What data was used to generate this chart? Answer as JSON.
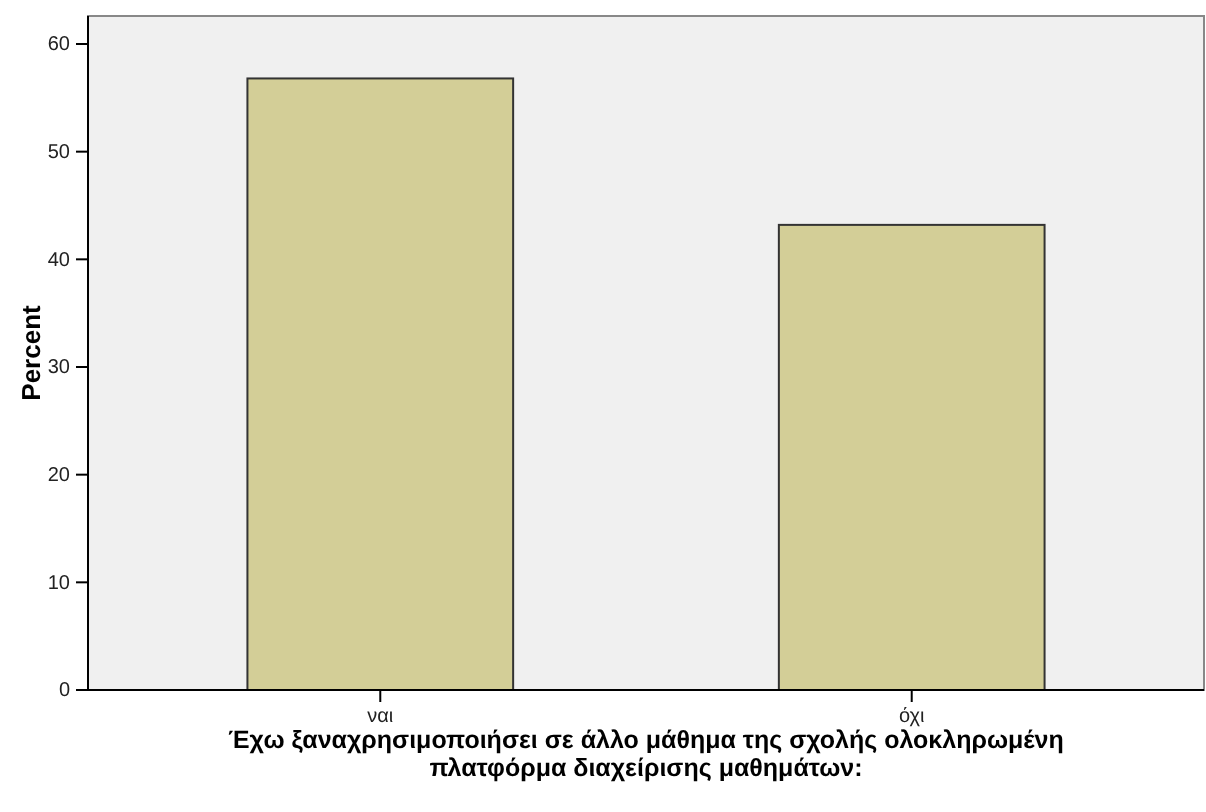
{
  "chart_data": {
    "type": "bar",
    "xlabel": "Έχω ξαναχρησιμοποιήσει σε άλλο μάθημα της σχολής ολοκληρωμένη πλατφόρμα διαχείρισης μαθημάτων:",
    "ylabel": "Percent",
    "categories": [
      "ναι",
      "όχι"
    ],
    "values": [
      56.8,
      43.2
    ],
    "color": "#d3ce97",
    "ylim": [
      0,
      62.6
    ],
    "yticks": [
      0,
      10,
      20,
      30,
      40,
      50,
      60
    ],
    "grid": false
  }
}
